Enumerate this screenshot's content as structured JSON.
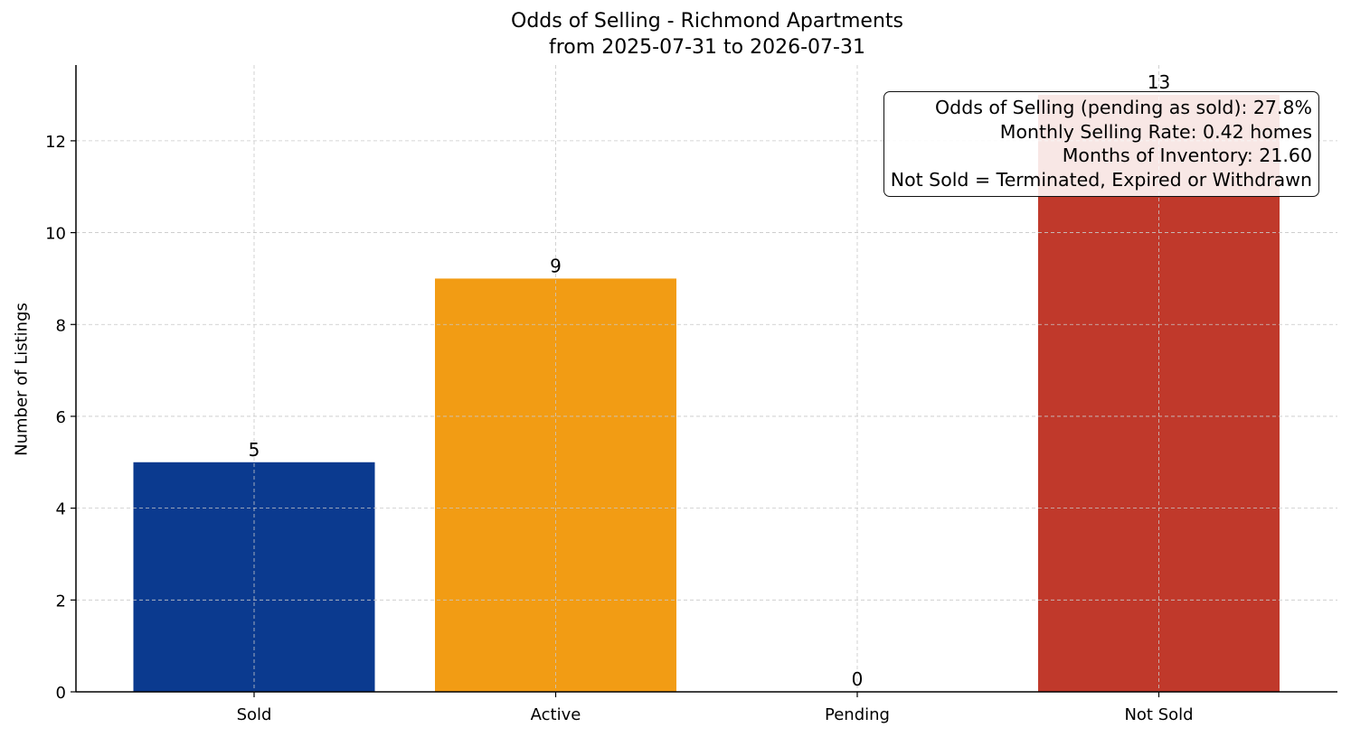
{
  "chart_data": {
    "type": "bar",
    "title": "Odds of Selling - Richmond Apartments",
    "subtitle": "from 2025-07-31 to 2026-07-31",
    "xlabel": "",
    "ylabel": "Number of Listings",
    "categories": [
      "Sold",
      "Active",
      "Pending",
      "Not Sold"
    ],
    "values": [
      5,
      9,
      0,
      13
    ],
    "data_labels": [
      "5",
      "9",
      "0",
      "13"
    ],
    "colors": [
      "#0b3a8f",
      "#f29c14",
      "#2b8a3e",
      "#c0392b"
    ],
    "ylim": [
      0,
      13.65
    ],
    "yticks": [
      0,
      2,
      4,
      6,
      8,
      10,
      12
    ],
    "grid": true,
    "annotation_box": {
      "position": "top-right",
      "lines": [
        "Odds of Selling (pending as sold): 27.8%",
        "Monthly Selling Rate: 0.42 homes",
        "Months of Inventory: 21.60",
        "Not Sold = Terminated, Expired or Withdrawn"
      ]
    }
  }
}
